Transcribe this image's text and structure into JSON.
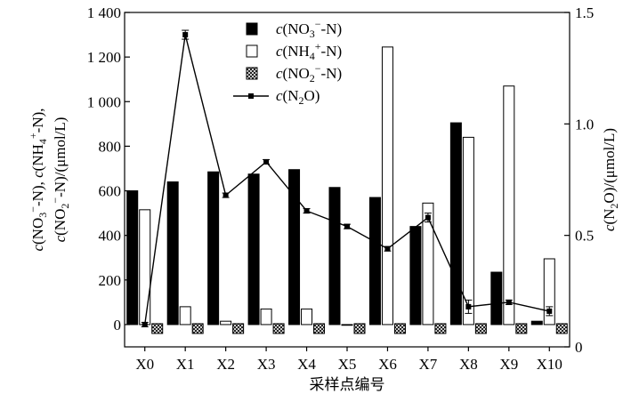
{
  "chart_data": {
    "type": "bar",
    "categories": [
      "X0",
      "X1",
      "X2",
      "X3",
      "X4",
      "X5",
      "X6",
      "X7",
      "X8",
      "X9",
      "X10"
    ],
    "xlabel": "采样点编号",
    "ylabel_left": {
      "line1_parts": [
        "c",
        "(NO",
        "3",
        "−",
        "-N), ",
        "c",
        "(NH",
        "4",
        "+",
        "-N),"
      ],
      "line2_parts": [
        "c",
        "(NO",
        "2",
        "−",
        "-N)/(μmol/L)"
      ]
    },
    "ylabel_right_parts": [
      "c",
      "(N",
      "2",
      "O)/(μmol/L)"
    ],
    "ylim_left": [
      -100,
      1400
    ],
    "yticks_left": [
      0,
      200,
      400,
      600,
      800,
      1000,
      1200,
      1400
    ],
    "yticklabels_left": [
      "0",
      "200",
      "400",
      "600",
      "800",
      "1 000",
      "1 200",
      "1 400"
    ],
    "ylim_right": [
      0,
      1.5
    ],
    "yticks_right": [
      0,
      0.5,
      1.0,
      1.5
    ],
    "yticklabels_right": [
      "0",
      "0.5",
      "1.0",
      "1.5"
    ],
    "legend_position": "top-center",
    "series": [
      {
        "name_parts": [
          "c",
          "(NO",
          "3",
          "−",
          "-N)"
        ],
        "kind": "bar",
        "axis": "left",
        "fill": "#000000",
        "values": [
          600,
          640,
          685,
          675,
          695,
          615,
          570,
          440,
          905,
          235,
          15
        ]
      },
      {
        "name_parts": [
          "c",
          "(NH",
          "4",
          "+",
          "-N)"
        ],
        "kind": "bar",
        "axis": "left",
        "fill": "#ffffff",
        "values": [
          515,
          80,
          15,
          70,
          70,
          0,
          1245,
          545,
          840,
          1070,
          295
        ]
      },
      {
        "name_parts": [
          "c",
          "(NO",
          "2",
          "−",
          "-N)"
        ],
        "kind": "bar",
        "axis": "left",
        "fill": "hatch",
        "values": [
          0,
          0,
          0,
          0,
          0,
          0,
          0,
          0,
          0,
          0,
          0
        ]
      },
      {
        "name_parts": [
          "c",
          "(N",
          "2",
          "O)"
        ],
        "kind": "line",
        "axis": "right",
        "color": "#000000",
        "values": [
          0.1,
          1.4,
          0.68,
          0.83,
          0.61,
          0.54,
          0.44,
          0.58,
          0.18,
          0.2,
          0.16
        ],
        "errors": [
          0.01,
          0.02,
          0.01,
          0.01,
          0.01,
          0.01,
          0.01,
          0.02,
          0.03,
          0.01,
          0.02
        ]
      }
    ]
  }
}
